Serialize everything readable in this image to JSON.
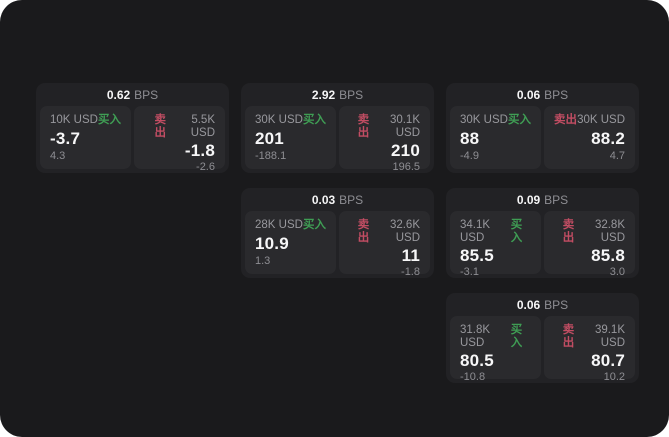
{
  "labels": {
    "unit": "BPS",
    "buy": "买入",
    "sell": "卖出"
  },
  "colors": {
    "page_bg": "#1a1a1c",
    "card_bg": "#222225",
    "panel_bg": "#2a2a2d",
    "buy_green": "#3f9d54",
    "sell_red": "#c24d63"
  },
  "cards": [
    {
      "bps": "0.62",
      "row": 1,
      "col": 1,
      "buy": {
        "amount": "10K USD",
        "value": "-3.7",
        "delta": "4.3"
      },
      "sell": {
        "amount": "5.5K USD",
        "value": "-1.8",
        "delta": "-2.6"
      }
    },
    {
      "bps": "2.92",
      "row": 1,
      "col": 2,
      "buy": {
        "amount": "30K USD",
        "value": "201",
        "delta": "-188.1"
      },
      "sell": {
        "amount": "30.1K USD",
        "value": "210",
        "delta": "196.5"
      }
    },
    {
      "bps": "0.06",
      "row": 1,
      "col": 3,
      "buy": {
        "amount": "30K USD",
        "value": "88",
        "delta": "-4.9"
      },
      "sell": {
        "amount": "30K USD",
        "value": "88.2",
        "delta": "4.7"
      }
    },
    {
      "bps": "0.03",
      "row": 2,
      "col": 2,
      "buy": {
        "amount": "28K USD",
        "value": "10.9",
        "delta": "1.3"
      },
      "sell": {
        "amount": "32.6K USD",
        "value": "11",
        "delta": "-1.8"
      }
    },
    {
      "bps": "0.09",
      "row": 2,
      "col": 3,
      "buy": {
        "amount": "34.1K USD",
        "value": "85.5",
        "delta": "-3.1"
      },
      "sell": {
        "amount": "32.8K USD",
        "value": "85.8",
        "delta": "3.0"
      }
    },
    {
      "bps": "0.06",
      "row": 3,
      "col": 3,
      "buy": {
        "amount": "31.8K USD",
        "value": "80.5",
        "delta": "-10.8"
      },
      "sell": {
        "amount": "39.1K USD",
        "value": "80.7",
        "delta": "10.2"
      }
    }
  ]
}
